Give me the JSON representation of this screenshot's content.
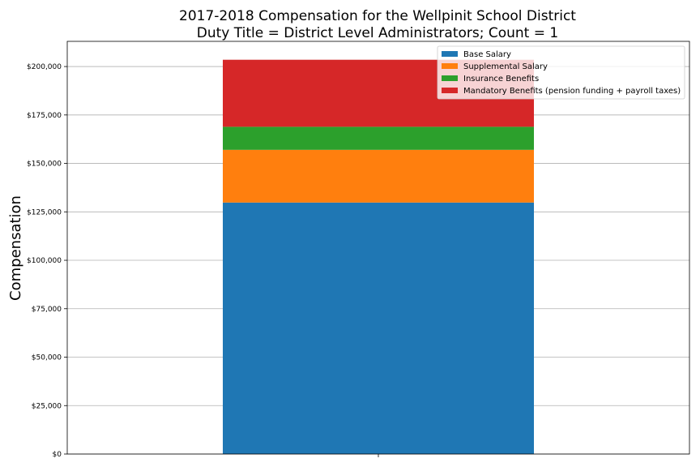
{
  "chart_data": {
    "type": "bar",
    "stacked": true,
    "title": "2017-2018 Compensation for the Wellpinit School District",
    "subtitle": "Duty Title = District Level Administrators; Count = 1",
    "xlabel": "",
    "ylabel": "Compensation",
    "categories": [
      ""
    ],
    "ylim": [
      0,
      213000
    ],
    "yticks": [
      0,
      25000,
      50000,
      75000,
      100000,
      125000,
      150000,
      175000,
      200000
    ],
    "ytick_labels": [
      "$0",
      "$25,000",
      "$50,000",
      "$75,000",
      "$100,000",
      "$125,000",
      "$150,000",
      "$175,000",
      "$200,000"
    ],
    "grid": true,
    "legend_position": "top-right",
    "series": [
      {
        "name": "Base Salary",
        "color": "#1f77b4",
        "values": [
          129800
        ]
      },
      {
        "name": "Supplemental Salary",
        "color": "#ff7f0e",
        "values": [
          27200
        ]
      },
      {
        "name": "Insurance Benefits",
        "color": "#2ca02c",
        "values": [
          11900
        ]
      },
      {
        "name": "Mandatory Benefits (pension funding + payroll taxes)",
        "color": "#d62728",
        "values": [
          34600
        ]
      }
    ]
  }
}
